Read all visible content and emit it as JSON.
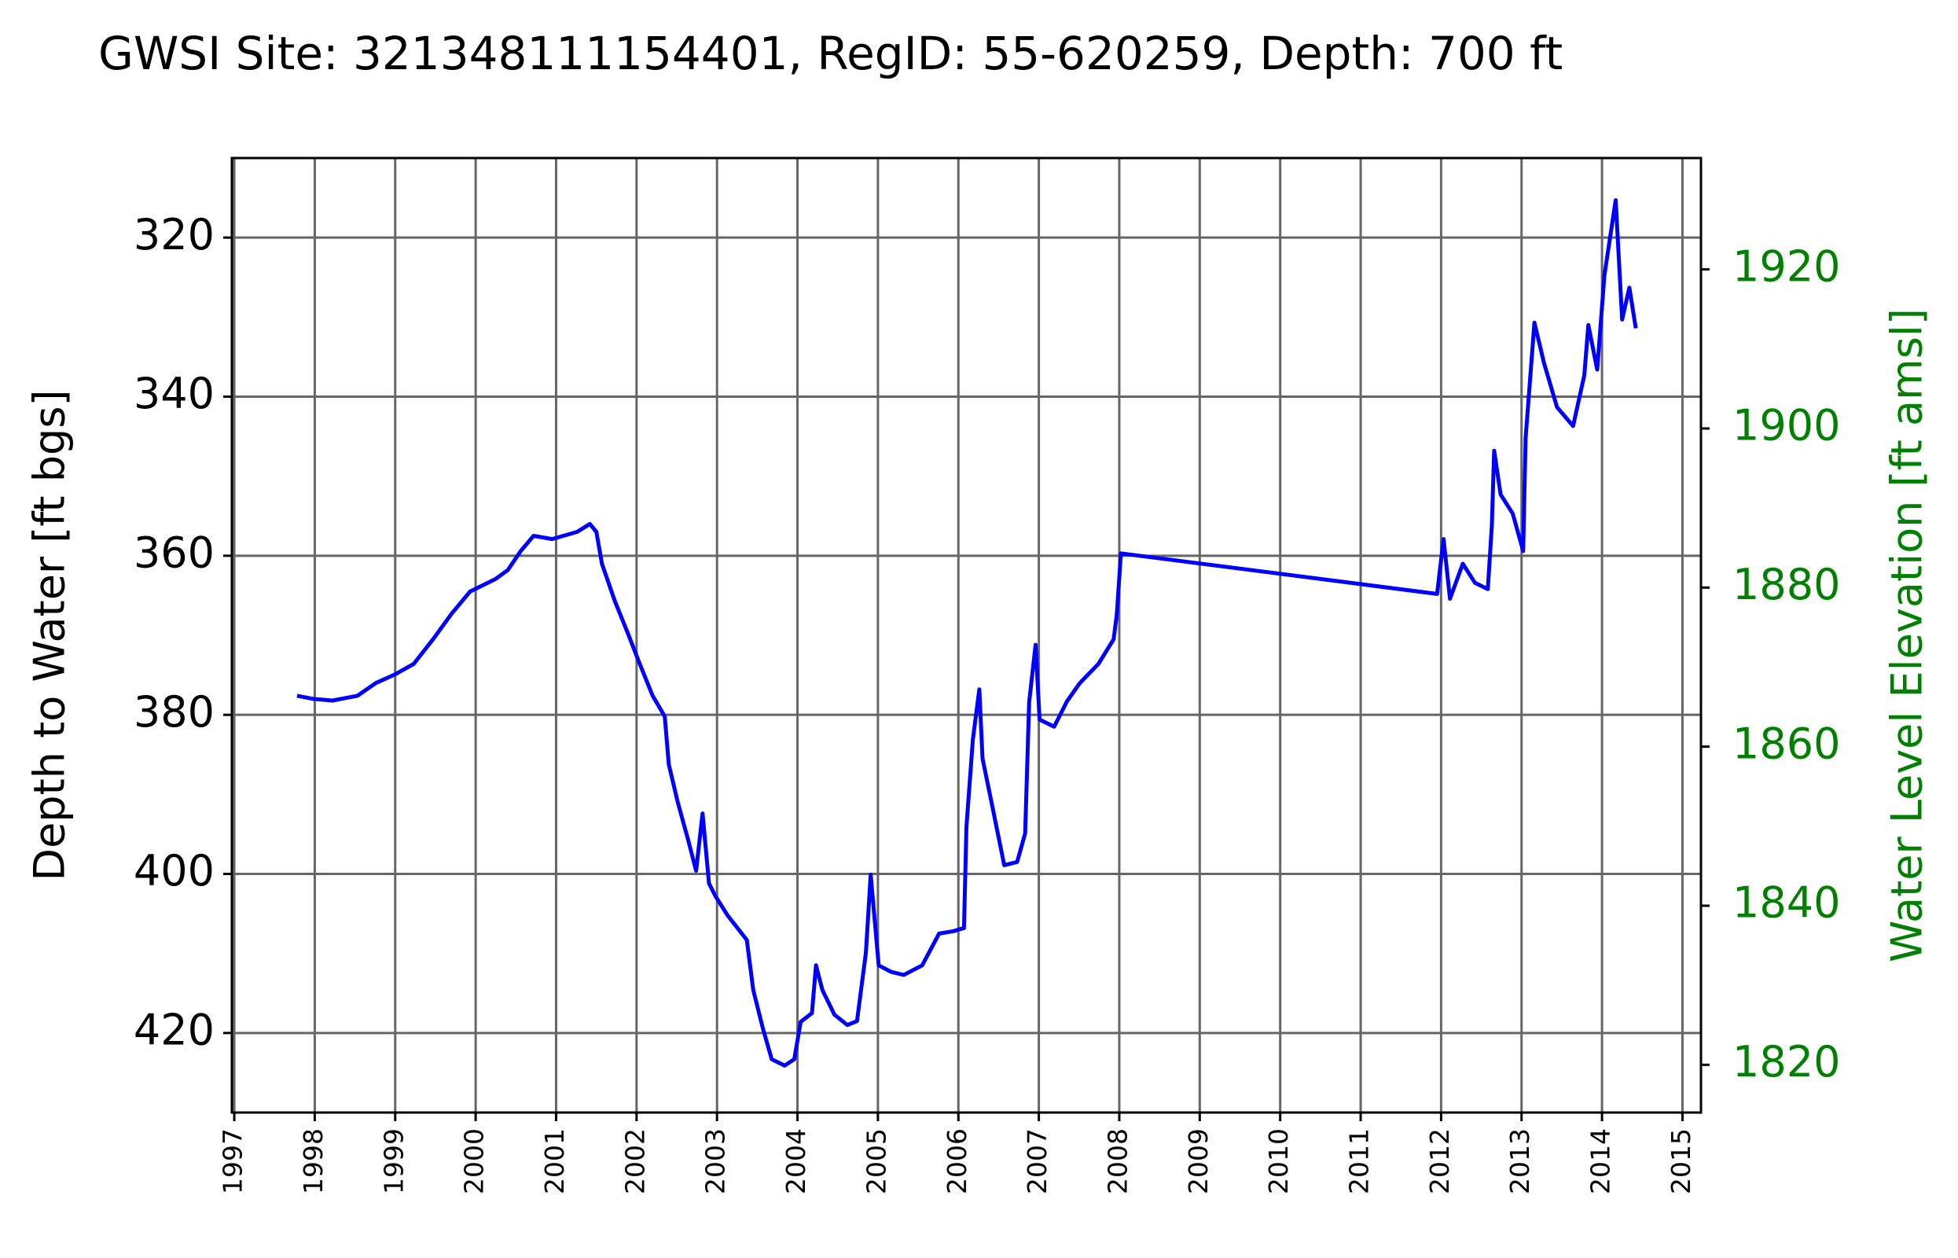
{
  "chart_data": {
    "type": "line",
    "title": "GWSI Site: 321348111154401, RegID: 55-620259, Depth: 700 ft",
    "ylabel": "Depth to Water [ft bgs]",
    "y2label": "Water Level Elevation [ft amsl]",
    "y2color": "#008000",
    "x": [
      1997.78,
      1997.98,
      1998.22,
      1998.53,
      1998.76,
      1999.0,
      1999.23,
      1999.47,
      1999.7,
      1999.93,
      2000.25,
      2000.4,
      2000.56,
      2000.72,
      2000.95,
      2001.26,
      2001.42,
      2001.5,
      2001.57,
      2001.73,
      2001.89,
      2002.04,
      2002.2,
      2002.35,
      2002.4,
      2002.51,
      2002.64,
      2002.74,
      2002.82,
      2002.9,
      2002.98,
      2003.13,
      2003.37,
      2003.45,
      2003.57,
      2003.68,
      2003.84,
      2003.96,
      2004.04,
      2004.18,
      2004.23,
      2004.31,
      2004.46,
      2004.62,
      2004.74,
      2004.85,
      2004.91,
      2005.01,
      2005.16,
      2005.32,
      2005.55,
      2005.76,
      2005.94,
      2006.07,
      2006.1,
      2006.18,
      2006.26,
      2006.3,
      2006.41,
      2006.57,
      2006.73,
      2006.83,
      2006.88,
      2006.96,
      2007.01,
      2007.19,
      2007.35,
      2007.51,
      2007.74,
      2007.93,
      2007.97,
      2008.02,
      2011.95,
      2012.03,
      2012.11,
      2012.27,
      2012.42,
      2012.58,
      2012.63,
      2012.66,
      2012.74,
      2012.89,
      2013.02,
      2013.05,
      2013.16,
      2013.28,
      2013.44,
      2013.64,
      2013.78,
      2013.83,
      2013.94,
      2014.03,
      2014.17,
      2014.25,
      2014.34,
      2014.42
    ],
    "series": [
      {
        "color": "#0000ff",
        "values": [
          377.6,
          378.0,
          378.2,
          377.6,
          376.0,
          374.9,
          373.6,
          370.5,
          367.3,
          364.5,
          362.9,
          361.8,
          359.4,
          357.5,
          357.9,
          357.0,
          356.0,
          357.0,
          361.0,
          365.7,
          369.7,
          373.6,
          377.6,
          380.2,
          386.2,
          390.9,
          395.7,
          399.6,
          392.4,
          401.2,
          402.8,
          405.2,
          408.3,
          414.6,
          419.4,
          423.3,
          424.1,
          423.3,
          418.6,
          417.5,
          411.5,
          414.6,
          417.7,
          419.0,
          418.5,
          409.9,
          400.1,
          411.5,
          412.3,
          412.7,
          411.5,
          407.5,
          407.2,
          406.8,
          394.1,
          383.1,
          376.8,
          385.5,
          390.9,
          398.9,
          398.5,
          394.9,
          378.4,
          371.2,
          380.6,
          381.5,
          378.3,
          376.0,
          373.6,
          370.5,
          367.3,
          359.7,
          364.8,
          357.9,
          365.4,
          361.0,
          363.4,
          364.2,
          356.3,
          346.8,
          352.3,
          354.7,
          359.4,
          345.2,
          330.7,
          335.8,
          341.3,
          343.7,
          337.3,
          331.0,
          336.6,
          324.7,
          315.3,
          330.3,
          326.3,
          331.4
        ]
      }
    ],
    "xlim": [
      1996.97,
      2015.23
    ],
    "xticks": [
      1997,
      1998,
      1999,
      2000,
      2001,
      2002,
      2003,
      2004,
      2005,
      2006,
      2007,
      2008,
      2009,
      2010,
      2011,
      2012,
      2013,
      2014,
      2015
    ],
    "ylim": [
      430,
      310
    ],
    "yticks": [
      320,
      340,
      360,
      380,
      400,
      420
    ],
    "y2lim": [
      1814,
      1934
    ],
    "y2ticks": [
      1820,
      1840,
      1860,
      1880,
      1900,
      1920
    ],
    "grid": true
  }
}
